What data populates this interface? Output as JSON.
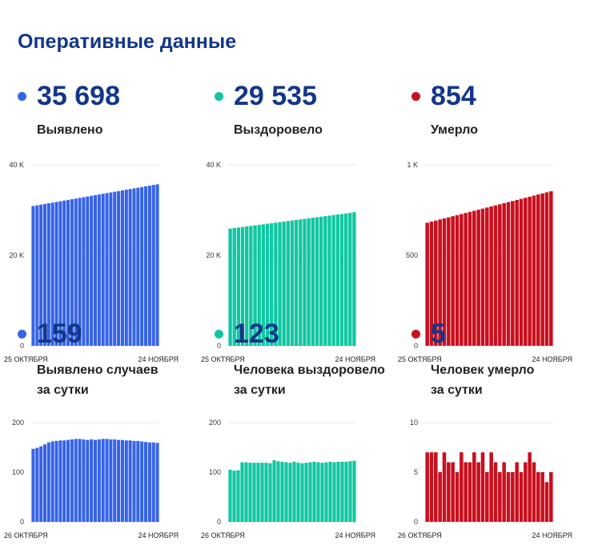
{
  "page": {
    "title": "Оперативные данные"
  },
  "colors": {
    "blue": "#3563e9",
    "green": "#10c7a2",
    "red": "#c8101e",
    "title": "#13368a"
  },
  "panels": [
    {
      "color": "#3563e9",
      "value": "35 698",
      "label": [
        "Выявлено"
      ]
    },
    {
      "color": "#10c7a2",
      "value": "29 535",
      "label": [
        "Выздоровело"
      ]
    },
    {
      "color": "#c8101e",
      "value": "854",
      "label": [
        "Умерло"
      ]
    },
    {
      "color": "#3563e9",
      "value": "159",
      "label": [
        "Выявлено случаев",
        "за сутки"
      ]
    },
    {
      "color": "#10c7a2",
      "value": "123",
      "label": [
        "Человека выздоровело",
        "за сутки"
      ]
    },
    {
      "color": "#c8101e",
      "value": "5",
      "label": [
        "Человек умерло",
        "за сутки"
      ]
    }
  ],
  "chart_data": [
    {
      "type": "bar",
      "x_start": "25 ОКТЯБРЯ",
      "x_end": "24 НОЯБРЯ",
      "yticks": [
        0,
        20000,
        40000
      ],
      "ytick_labels": [
        "0",
        "20 K",
        "40 K"
      ],
      "ylim": [
        0,
        40000
      ],
      "grid": true,
      "values": [
        30900,
        31050,
        31200,
        31350,
        31500,
        31650,
        31800,
        31950,
        32100,
        32250,
        32400,
        32550,
        32700,
        32850,
        33000,
        33150,
        33300,
        33450,
        33600,
        33750,
        33900,
        34050,
        34200,
        34350,
        34500,
        34650,
        34800,
        34950,
        35100,
        35250,
        35400,
        35550,
        35698
      ]
    },
    {
      "type": "bar",
      "x_start": "25 ОКТЯБРЯ",
      "x_end": "24 НОЯБРЯ",
      "yticks": [
        0,
        20000,
        40000
      ],
      "ytick_labels": [
        "0",
        "20 K",
        "40 K"
      ],
      "ylim": [
        0,
        40000
      ],
      "grid": true,
      "values": [
        25900,
        26020,
        26140,
        26260,
        26380,
        26500,
        26620,
        26740,
        26860,
        26980,
        27100,
        27220,
        27340,
        27460,
        27580,
        27700,
        27820,
        27940,
        28060,
        28180,
        28300,
        28420,
        28540,
        28660,
        28780,
        28900,
        29020,
        29140,
        29260,
        29380,
        29535
      ]
    },
    {
      "type": "bar",
      "x_start": "25 ОКТЯБРЯ",
      "x_end": "24 НОЯБРЯ",
      "yticks": [
        0,
        500,
        1000
      ],
      "ytick_labels": [
        "0",
        "500",
        "1 K"
      ],
      "ylim": [
        0,
        1000
      ],
      "grid": true,
      "values": [
        680,
        686,
        692,
        698,
        704,
        710,
        716,
        722,
        728,
        734,
        740,
        746,
        752,
        758,
        764,
        770,
        776,
        782,
        788,
        794,
        800,
        806,
        812,
        818,
        824,
        830,
        836,
        842,
        848,
        854
      ]
    },
    {
      "type": "bar",
      "x_start": "26 ОКТЯБРЯ",
      "x_end": "24 НОЯБРЯ",
      "yticks": [
        0,
        100,
        200
      ],
      "ytick_labels": [
        "0",
        "100",
        "200"
      ],
      "ylim": [
        0,
        200
      ],
      "grid": true,
      "values": [
        147,
        149,
        152,
        156,
        160,
        162,
        163,
        164,
        164,
        165,
        166,
        167,
        167,
        166,
        165,
        166,
        165,
        166,
        167,
        167,
        166,
        166,
        165,
        165,
        164,
        164,
        163,
        163,
        162,
        161,
        160,
        160,
        159
      ]
    },
    {
      "type": "bar",
      "x_start": "26 ОКТЯБРЯ",
      "x_end": "24 НОЯБРЯ",
      "yticks": [
        0,
        100,
        200
      ],
      "ytick_labels": [
        "0",
        "100",
        "200"
      ],
      "ylim": [
        0,
        200
      ],
      "grid": true,
      "values": [
        105,
        103,
        104,
        120,
        120,
        119,
        119,
        119,
        119,
        119,
        118,
        124,
        122,
        121,
        120,
        119,
        121,
        119,
        118,
        119,
        120,
        121,
        120,
        119,
        120,
        121,
        120,
        121,
        121,
        121,
        122,
        123
      ]
    },
    {
      "type": "bar",
      "x_start": "26 ОКТЯБРЯ",
      "x_end": "24 НОЯБРЯ",
      "yticks": [
        0,
        5,
        10
      ],
      "ytick_labels": [
        "0",
        "5",
        "10"
      ],
      "ylim": [
        0,
        10
      ],
      "grid": true,
      "values": [
        7,
        7,
        7,
        5,
        7,
        6,
        6,
        5,
        7,
        6,
        6,
        7,
        6,
        7,
        5,
        7,
        6,
        5,
        6,
        5,
        5,
        6,
        5,
        6,
        7,
        6,
        5,
        5,
        4,
        5
      ]
    }
  ]
}
